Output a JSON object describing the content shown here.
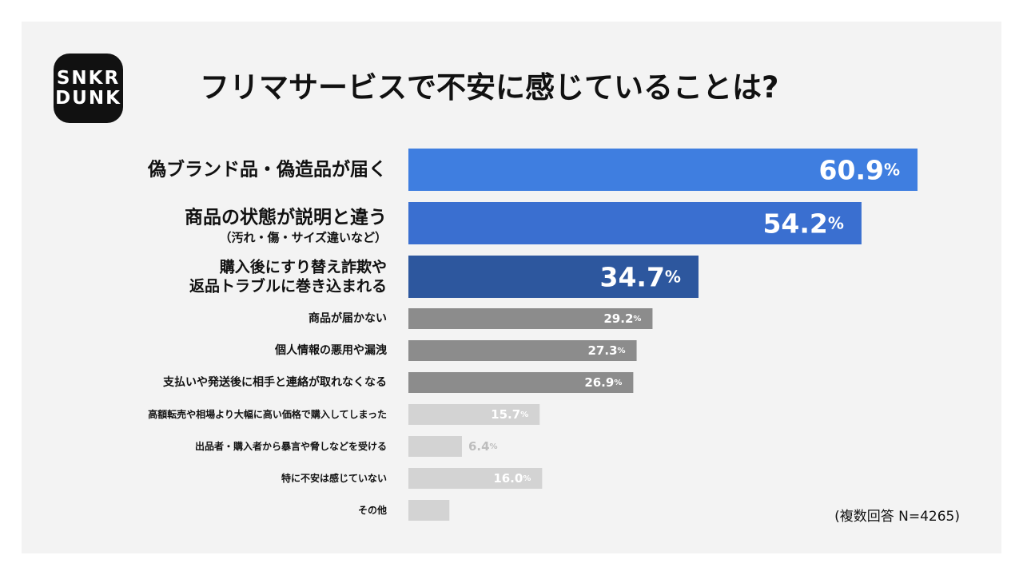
{
  "brand": {
    "logo_text": "SNKR\nDUNK"
  },
  "title": "フリマサービスで不安に感じていることは?",
  "note": "(複数回答 N=4265)",
  "colors": {
    "top1": "#3f7ee0",
    "top2": "#3a6fd0",
    "top3": "#2d579e",
    "mid": "#8c8c8c",
    "low": "#d3d3d3",
    "label_dark": "#111111",
    "value_light": "#ffffff",
    "value_low": "#bdbdbd"
  },
  "chart_data": {
    "type": "bar",
    "orientation": "horizontal",
    "unit": "%",
    "xlim": [
      0,
      100
    ],
    "categories": [
      [
        "偽ブランド品・偽造品が届く"
      ],
      [
        "商品の状態が説明と違う",
        "（汚れ・傷・サイズ違いなど）"
      ],
      [
        "購入後にすり替え詐欺や",
        "返品トラブルに巻き込まれる"
      ],
      [
        "商品が届かない"
      ],
      [
        "個人情報の悪用や漏洩"
      ],
      [
        "支払いや発送後に相手と連絡が取れなくなる"
      ],
      [
        "高額転売や相場より大幅に高い価格で購入してしまった"
      ],
      [
        "出品者・購入者から暴言や脅しなどを受ける"
      ],
      [
        "特に不安は感じていない"
      ],
      [
        "その他"
      ]
    ],
    "values": [
      60.9,
      54.2,
      34.7,
      29.2,
      27.3,
      26.9,
      15.7,
      6.4,
      16.0,
      4.9
    ],
    "value_labels": [
      "60.9",
      "54.2",
      "34.7",
      "29.2",
      "27.3",
      "26.9",
      "15.7",
      "6.4",
      "16.0",
      ""
    ],
    "tiers": [
      "top1",
      "top2",
      "top3",
      "mid",
      "mid",
      "mid",
      "low",
      "low",
      "low",
      "low"
    ]
  }
}
